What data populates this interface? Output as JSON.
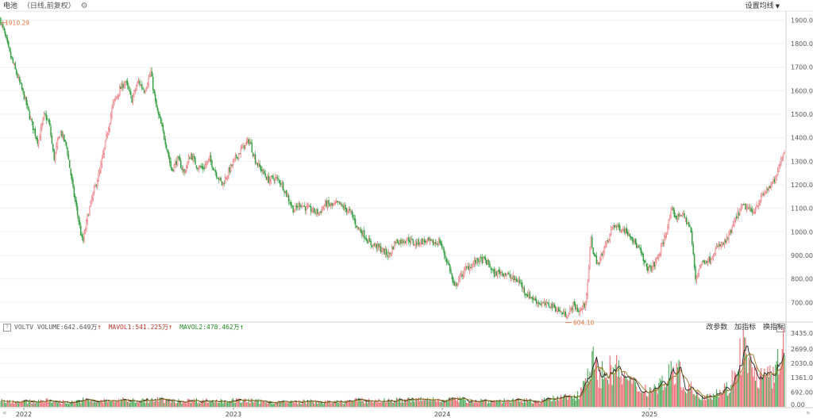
{
  "header": {
    "title": "电池",
    "subtitle": "（日线,前复权）",
    "settings_label": "设置均线"
  },
  "volume_panel": {
    "label": "VOLTV",
    "volume_label": "VOLUME:",
    "volume_value": "642.649万",
    "ma1_label": "MAVOL1:",
    "ma1_value": "541.225万",
    "ma2_label": "MAVOL2:",
    "ma2_value": "478.462万",
    "tools": [
      "改参数",
      "加指标",
      "换指标"
    ],
    "close_icon": "close-icon"
  },
  "icons": {
    "settings": "gear-icon",
    "help": "question-icon",
    "nav_left": "double-chevron-left-icon",
    "nav_right": "double-chevron-right-icon"
  },
  "colors": {
    "up": "#e8535a",
    "down": "#2e9b3c",
    "ma1": "#222222",
    "ma2": "#9a7a20",
    "marker": "#e8733a"
  },
  "chart_data": {
    "type": "candlestick",
    "price_axis": {
      "min": 620,
      "max": 1935,
      "ticks": [
        "1900.00",
        "1800.00",
        "1700.00",
        "1600.00",
        "1500.00",
        "1400.00",
        "1300.00",
        "1200.00",
        "1100.00",
        "1000.00",
        "900.00",
        "800.00",
        "700.00"
      ]
    },
    "volume_axis": {
      "min": 0,
      "max": 3435,
      "ticks": [
        "3435.00",
        "2699.00",
        "2030.00",
        "1361.00",
        "692.00",
        "0.00"
      ]
    },
    "x_labels": [
      {
        "label": "2022",
        "date": "2022-01"
      },
      {
        "label": "2023",
        "date": "2023-01"
      },
      {
        "label": "2024",
        "date": "2024-01"
      },
      {
        "label": "2025",
        "date": "2025-01"
      }
    ],
    "annotations": [
      {
        "label": "1910.29",
        "value": 1910.29,
        "kind": "high"
      },
      {
        "label": "604.10",
        "value": 604.1,
        "kind": "low"
      }
    ],
    "price_path": [
      [
        0,
        1905
      ],
      [
        5,
        1850
      ],
      [
        12,
        1760
      ],
      [
        20,
        1680
      ],
      [
        30,
        1580
      ],
      [
        40,
        1460
      ],
      [
        48,
        1380
      ],
      [
        56,
        1500
      ],
      [
        62,
        1460
      ],
      [
        68,
        1310
      ],
      [
        76,
        1430
      ],
      [
        84,
        1360
      ],
      [
        92,
        1180
      ],
      [
        100,
        1030
      ],
      [
        104,
        950
      ],
      [
        110,
        1060
      ],
      [
        118,
        1170
      ],
      [
        126,
        1260
      ],
      [
        134,
        1400
      ],
      [
        142,
        1540
      ],
      [
        150,
        1600
      ],
      [
        158,
        1640
      ],
      [
        166,
        1560
      ],
      [
        174,
        1640
      ],
      [
        182,
        1600
      ],
      [
        190,
        1680
      ],
      [
        196,
        1540
      ],
      [
        204,
        1440
      ],
      [
        210,
        1360
      ],
      [
        216,
        1260
      ],
      [
        224,
        1310
      ],
      [
        232,
        1250
      ],
      [
        240,
        1330
      ],
      [
        248,
        1280
      ],
      [
        256,
        1270
      ],
      [
        264,
        1310
      ],
      [
        272,
        1250
      ],
      [
        280,
        1200
      ],
      [
        290,
        1270
      ],
      [
        298,
        1320
      ],
      [
        306,
        1360
      ],
      [
        314,
        1390
      ],
      [
        322,
        1300
      ],
      [
        330,
        1260
      ],
      [
        338,
        1220
      ],
      [
        346,
        1230
      ],
      [
        354,
        1210
      ],
      [
        362,
        1150
      ],
      [
        370,
        1090
      ],
      [
        378,
        1120
      ],
      [
        386,
        1100
      ],
      [
        394,
        1090
      ],
      [
        402,
        1080
      ],
      [
        410,
        1120
      ],
      [
        418,
        1110
      ],
      [
        426,
        1120
      ],
      [
        434,
        1100
      ],
      [
        442,
        1080
      ],
      [
        450,
        1020
      ],
      [
        458,
        990
      ],
      [
        466,
        950
      ],
      [
        474,
        940
      ],
      [
        482,
        920
      ],
      [
        490,
        900
      ],
      [
        498,
        960
      ],
      [
        506,
        960
      ],
      [
        514,
        970
      ],
      [
        522,
        950
      ],
      [
        530,
        960
      ],
      [
        538,
        960
      ],
      [
        546,
        950
      ],
      [
        554,
        960
      ],
      [
        560,
        900
      ],
      [
        566,
        850
      ],
      [
        572,
        760
      ],
      [
        578,
        800
      ],
      [
        586,
        840
      ],
      [
        594,
        860
      ],
      [
        602,
        880
      ],
      [
        610,
        880
      ],
      [
        616,
        860
      ],
      [
        622,
        820
      ],
      [
        630,
        830
      ],
      [
        638,
        820
      ],
      [
        646,
        800
      ],
      [
        654,
        790
      ],
      [
        662,
        740
      ],
      [
        670,
        720
      ],
      [
        678,
        700
      ],
      [
        686,
        690
      ],
      [
        694,
        690
      ],
      [
        702,
        670
      ],
      [
        710,
        650
      ],
      [
        716,
        650
      ],
      [
        722,
        690
      ],
      [
        730,
        660
      ],
      [
        736,
        690
      ],
      [
        740,
        760
      ],
      [
        744,
        980
      ],
      [
        748,
        900
      ],
      [
        754,
        860
      ],
      [
        760,
        930
      ],
      [
        766,
        960
      ],
      [
        772,
        1030
      ],
      [
        778,
        1020
      ],
      [
        786,
        1010
      ],
      [
        794,
        990
      ],
      [
        800,
        950
      ],
      [
        806,
        920
      ],
      [
        812,
        860
      ],
      [
        818,
        840
      ],
      [
        824,
        860
      ],
      [
        832,
        920
      ],
      [
        840,
        1010
      ],
      [
        846,
        1090
      ],
      [
        852,
        1060
      ],
      [
        858,
        1080
      ],
      [
        864,
        1050
      ],
      [
        870,
        1010
      ],
      [
        876,
        800
      ],
      [
        882,
        860
      ],
      [
        888,
        880
      ],
      [
        894,
        880
      ],
      [
        900,
        920
      ],
      [
        906,
        940
      ],
      [
        912,
        950
      ],
      [
        918,
        980
      ],
      [
        924,
        1030
      ],
      [
        930,
        1080
      ],
      [
        936,
        1110
      ],
      [
        942,
        1100
      ],
      [
        948,
        1080
      ],
      [
        954,
        1120
      ],
      [
        960,
        1150
      ],
      [
        966,
        1180
      ],
      [
        972,
        1200
      ],
      [
        978,
        1230
      ],
      [
        984,
        1320
      ],
      [
        988,
        1340
      ]
    ],
    "volume_path": [
      [
        0,
        300
      ],
      [
        30,
        240
      ],
      [
        60,
        280
      ],
      [
        90,
        210
      ],
      [
        104,
        320
      ],
      [
        120,
        250
      ],
      [
        150,
        310
      ],
      [
        180,
        290
      ],
      [
        200,
        340
      ],
      [
        220,
        260
      ],
      [
        250,
        300
      ],
      [
        280,
        270
      ],
      [
        300,
        300
      ],
      [
        330,
        250
      ],
      [
        360,
        220
      ],
      [
        390,
        250
      ],
      [
        420,
        210
      ],
      [
        450,
        300
      ],
      [
        480,
        280
      ],
      [
        510,
        320
      ],
      [
        540,
        340
      ],
      [
        560,
        360
      ],
      [
        580,
        330
      ],
      [
        600,
        300
      ],
      [
        620,
        280
      ],
      [
        650,
        290
      ],
      [
        680,
        280
      ],
      [
        710,
        430
      ],
      [
        730,
        560
      ],
      [
        744,
        2300
      ],
      [
        750,
        1700
      ],
      [
        760,
        1500
      ],
      [
        772,
        1800
      ],
      [
        786,
        1400
      ],
      [
        800,
        900
      ],
      [
        820,
        780
      ],
      [
        840,
        1300
      ],
      [
        850,
        1900
      ],
      [
        860,
        1200
      ],
      [
        880,
        500
      ],
      [
        900,
        620
      ],
      [
        920,
        950
      ],
      [
        930,
        2300
      ],
      [
        936,
        2900
      ],
      [
        944,
        1800
      ],
      [
        960,
        1300
      ],
      [
        975,
        1450
      ],
      [
        985,
        2400
      ],
      [
        988,
        3100
      ]
    ]
  }
}
